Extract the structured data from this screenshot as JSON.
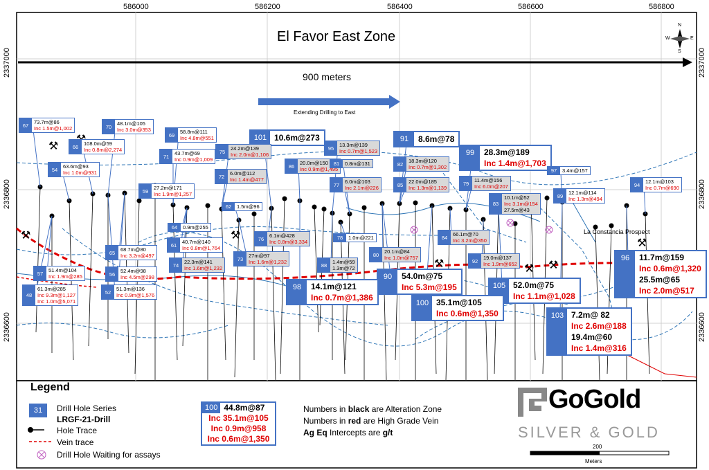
{
  "map": {
    "title": "El Favor East Zone",
    "distance_label": "900 meters",
    "extend_label": "Extending Drilling to East",
    "x_ticks": [
      "586000",
      "586200",
      "586400",
      "586600",
      "586800"
    ],
    "y_ticks": [
      "2337000",
      "2336800",
      "2336600"
    ],
    "prospect_label": "La Constancia Prospect",
    "compass": {
      "n": "N",
      "s": "S",
      "e": "E",
      "w": "W"
    },
    "colors": {
      "hole_box": "#4472c4",
      "high_grade": "#e00000",
      "vein": "#e00000",
      "trace": "#000000",
      "structure": "#2e75b6"
    }
  },
  "holes": [
    {
      "id": "67",
      "black": "73.7m@86",
      "red": "Inc 1.5m@1,002"
    },
    {
      "id": "70",
      "black": "48.1m@105",
      "red": "Inc 3.0m@353"
    },
    {
      "id": "66",
      "black": "108.0m@59",
      "red": "Inc 0.8m@2,274"
    },
    {
      "id": "69",
      "black": "58.8m@111",
      "red": "Inc 4.8m@551"
    },
    {
      "id": "101",
      "black": "10.6m@273",
      "red": ""
    },
    {
      "id": "91",
      "black": "8.6m@78",
      "red": ""
    },
    {
      "id": "95",
      "black": "13.3m@139",
      "red": "Inc 0.7m@1,523"
    },
    {
      "id": "75",
      "black": "24.2m@139",
      "red": "Inc 2.0m@1,106"
    },
    {
      "id": "71",
      "black": "43.7m@69",
      "red": "Inc 0.9m@1,009"
    },
    {
      "id": "99",
      "black": "28.3m@189",
      "red": "Inc 1.4m@1,703"
    },
    {
      "id": "54",
      "black": "63.6m@93",
      "red": "Inc 1.0m@931"
    },
    {
      "id": "86",
      "black": "20.0m@150",
      "red": "Inc 0.9m@1,495"
    },
    {
      "id": "81",
      "black": "0.8m@131",
      "red": ""
    },
    {
      "id": "82",
      "black": "18.3m@120",
      "red": "Inc 0.7m@1,302"
    },
    {
      "id": "72",
      "black": "6.0m@112",
      "red": "Inc 1.4m@477"
    },
    {
      "id": "97",
      "black": "3.4m@157",
      "red": ""
    },
    {
      "id": "77",
      "black": "6.0m@103",
      "red": "Inc 2.1m@226"
    },
    {
      "id": "85",
      "black": "22.0m@185",
      "red": "Inc 1.3m@1,139"
    },
    {
      "id": "79",
      "black": "11.4m@156",
      "red": "Inc 6.0m@207"
    },
    {
      "id": "94",
      "black": "12.1m@103",
      "red": "Inc 0.7m@690"
    },
    {
      "id": "59",
      "black": "27.2m@171",
      "red": "Inc 1.9m@1,257"
    },
    {
      "id": "89",
      "black": "12.1m@114",
      "red": "Inc 1.3m@494"
    },
    {
      "id": "83",
      "black": "10.1m@52",
      "black2": "27.5m@43",
      "red": "Inc 3.1m@154"
    },
    {
      "id": "62",
      "black": "1.5m@96",
      "red": ""
    },
    {
      "id": "64",
      "black": "0.9m@255",
      "red": ""
    },
    {
      "id": "76",
      "black": "6.1m@428",
      "red": "Inc 0.8m@3,334"
    },
    {
      "id": "78",
      "black": "1.0m@221",
      "red": ""
    },
    {
      "id": "84",
      "black": "66.1m@70",
      "red": "Inc 3.2m@350"
    },
    {
      "id": "61",
      "black": "40.7m@140",
      "red": "Inc 0.8m@1,764"
    },
    {
      "id": "65",
      "black": "68.7m@80",
      "red": "Inc 3.2m@497"
    },
    {
      "id": "80",
      "black": "20.1m@84",
      "red": "Inc 1.0m@757"
    },
    {
      "id": "73",
      "black": "27m@97",
      "red": "Inc 1.6m@1,232"
    },
    {
      "id": "88",
      "black": "1.4m@59",
      "black2": "1.3m@72",
      "red": ""
    },
    {
      "id": "92",
      "black": "19.0m@137",
      "red": "Inc 1.9m@652"
    },
    {
      "id": "74",
      "black": "22.3m@141",
      "red": "Inc 1.6m@1,232"
    },
    {
      "id": "56",
      "black": "52.4m@98",
      "red": "Inc 4.5m@298"
    },
    {
      "id": "57",
      "black": "51.4m@104",
      "red": "Inc 1.9m@285"
    },
    {
      "id": "96",
      "black": "11.7m@159",
      "red": "Inc 0.6m@1,320",
      "black2": "25.5m@65",
      "red2": "Inc 2.0m@517"
    },
    {
      "id": "90",
      "black": "54.0m@75",
      "red": "Inc 5.3m@195"
    },
    {
      "id": "98",
      "black": "14.1m@121",
      "red": "Inc 0.7m@1,386"
    },
    {
      "id": "105",
      "black": "52.0m@75",
      "red": "Inc 1.1m@1,028"
    },
    {
      "id": "52",
      "black": "51.3m@136",
      "red": "Inc 0.9m@1,576"
    },
    {
      "id": "48",
      "black": "61.3m@285",
      "red": "Inc 9.3m@1,127",
      "red2": "Inc 1.0m@5,071"
    },
    {
      "id": "100",
      "black": "35.1m@105",
      "red": "Inc 0.6m@1,350"
    },
    {
      "id": "103",
      "black": "7.2m@ 82",
      "red": "Inc 2.6m@188",
      "black2": "19.4m@60",
      "red2": "Inc 1.4m@316"
    }
  ],
  "legend": {
    "title": "Legend",
    "series_num": "31",
    "series_label": "Drill Hole Series",
    "drill_label": "LRGF-21-Drill",
    "trace_label": "Hole Trace",
    "vein_label": "Vein trace",
    "waiting_label": "Drill Hole Waiting for assays",
    "example": {
      "id": "100",
      "black": "44.8m@87",
      "reds": [
        "Inc 35.1m@105",
        "Inc 0.9m@958",
        "Inc 0.6m@1,350"
      ]
    },
    "notes": {
      "black_prefix": "Numbers in ",
      "black_word": "black",
      "black_suffix": " are Alteration Zone",
      "red_prefix": "Numbers in ",
      "red_word": "red",
      "red_suffix": " are High Grade Vein",
      "ageq_bold": "Ag Eq",
      "ageq_mid": " Intercepts are ",
      "ageq_unit": "g/t"
    }
  },
  "logo": {
    "name": "GoGold",
    "tagline": "SILVER & GOLD"
  },
  "scale": {
    "value": "200",
    "unit": "Meters"
  }
}
